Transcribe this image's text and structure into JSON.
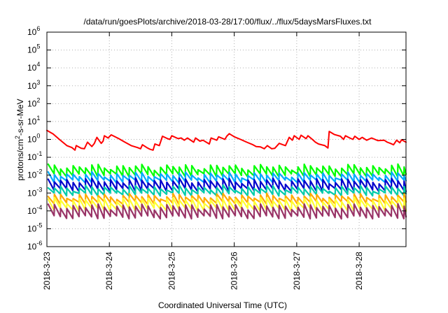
{
  "chart_data": {
    "type": "line",
    "title": "/data/run/goesPlots/archive/2018-03-28/17:00/flux/../flux/5daysMarsFluxes.txt",
    "xlabel": "Coordinated Universal Time (UTC)",
    "ylabel_parts": [
      "protons/cm",
      "2",
      "-s-sr-MeV"
    ],
    "y_scale": "log",
    "ylim": [
      1e-06,
      1000000.0
    ],
    "y_ticks": [
      {
        "mantissa": "10",
        "exp": "-6"
      },
      {
        "mantissa": "10",
        "exp": "-5"
      },
      {
        "mantissa": "10",
        "exp": "-4"
      },
      {
        "mantissa": "10",
        "exp": "-3"
      },
      {
        "mantissa": "10",
        "exp": "-2"
      },
      {
        "mantissa": "10",
        "exp": "-1"
      },
      {
        "mantissa": "10",
        "exp": "0"
      },
      {
        "mantissa": "10",
        "exp": "1"
      },
      {
        "mantissa": "10",
        "exp": "2"
      },
      {
        "mantissa": "10",
        "exp": "3"
      },
      {
        "mantissa": "10",
        "exp": "4"
      },
      {
        "mantissa": "10",
        "exp": "5"
      },
      {
        "mantissa": "10",
        "exp": "6"
      }
    ],
    "x_unit": "days",
    "xlim": [
      0,
      5.75
    ],
    "x_ticks": [
      {
        "label": "2018-3-23",
        "value": 0
      },
      {
        "label": "2018-3-24",
        "value": 1
      },
      {
        "label": "2018-3-25",
        "value": 2
      },
      {
        "label": "2018-3-26",
        "value": 3
      },
      {
        "label": "2018-3-27",
        "value": 4
      },
      {
        "label": "2018-3-28",
        "value": 5
      }
    ],
    "grid": true,
    "legend": "none",
    "series": [
      {
        "color": "#ff0000",
        "points": [
          [
            0.0,
            3.2
          ],
          [
            0.1,
            2.0
          ],
          [
            0.2,
            1.0
          ],
          [
            0.32,
            0.45
          ],
          [
            0.4,
            0.35
          ],
          [
            0.45,
            0.25
          ],
          [
            0.47,
            0.45
          ],
          [
            0.55,
            0.32
          ],
          [
            0.6,
            0.3
          ],
          [
            0.65,
            0.7
          ],
          [
            0.72,
            0.4
          ],
          [
            0.76,
            0.6
          ],
          [
            0.8,
            1.3
          ],
          [
            0.87,
            0.6
          ],
          [
            0.9,
            0.8
          ],
          [
            0.92,
            1.6
          ],
          [
            0.98,
            1.2
          ],
          [
            1.03,
            1.8
          ],
          [
            1.15,
            1.1
          ],
          [
            1.25,
            0.7
          ],
          [
            1.35,
            0.45
          ],
          [
            1.45,
            0.35
          ],
          [
            1.5,
            0.3
          ],
          [
            1.53,
            0.5
          ],
          [
            1.6,
            0.35
          ],
          [
            1.65,
            0.28
          ],
          [
            1.7,
            0.25
          ],
          [
            1.73,
            0.55
          ],
          [
            1.8,
            0.45
          ],
          [
            1.85,
            1.5
          ],
          [
            1.93,
            1.1
          ],
          [
            1.97,
            1.0
          ],
          [
            2.0,
            1.6
          ],
          [
            2.1,
            1.1
          ],
          [
            2.15,
            1.2
          ],
          [
            2.2,
            0.9
          ],
          [
            2.25,
            1.2
          ],
          [
            2.35,
            0.7
          ],
          [
            2.38,
            1.2
          ],
          [
            2.45,
            0.8
          ],
          [
            2.5,
            0.9
          ],
          [
            2.6,
            0.55
          ],
          [
            2.63,
            1.2
          ],
          [
            2.72,
            0.9
          ],
          [
            2.75,
            1.4
          ],
          [
            2.85,
            1.0
          ],
          [
            2.88,
            1.5
          ],
          [
            2.92,
            2.1
          ],
          [
            3.0,
            1.4
          ],
          [
            3.1,
            1.0
          ],
          [
            3.2,
            0.7
          ],
          [
            3.3,
            0.5
          ],
          [
            3.35,
            0.4
          ],
          [
            3.42,
            0.38
          ],
          [
            3.48,
            0.3
          ],
          [
            3.53,
            0.45
          ],
          [
            3.6,
            0.3
          ],
          [
            3.65,
            0.32
          ],
          [
            3.72,
            0.6
          ],
          [
            3.78,
            0.5
          ],
          [
            3.82,
            0.45
          ],
          [
            3.88,
            1.3
          ],
          [
            3.93,
            0.9
          ],
          [
            3.96,
            1.6
          ],
          [
            4.04,
            1.0
          ],
          [
            4.07,
            1.7
          ],
          [
            4.15,
            1.1
          ],
          [
            4.18,
            1.6
          ],
          [
            4.25,
            1.0
          ],
          [
            4.3,
            0.7
          ],
          [
            4.35,
            0.55
          ],
          [
            4.45,
            0.45
          ],
          [
            4.5,
            0.33
          ],
          [
            4.52,
            2.8
          ],
          [
            4.6,
            1.9
          ],
          [
            4.7,
            1.5
          ],
          [
            4.75,
            1.0
          ],
          [
            4.78,
            1.6
          ],
          [
            4.85,
            1.2
          ],
          [
            4.9,
            1.0
          ],
          [
            4.93,
            1.5
          ],
          [
            5.0,
            1.0
          ],
          [
            5.05,
            1.3
          ],
          [
            5.12,
            0.9
          ],
          [
            5.2,
            1.2
          ],
          [
            5.3,
            0.85
          ],
          [
            5.4,
            0.9
          ],
          [
            5.45,
            0.7
          ],
          [
            5.5,
            0.6
          ],
          [
            5.55,
            0.5
          ],
          [
            5.6,
            0.9
          ],
          [
            5.65,
            0.65
          ],
          [
            5.68,
            0.95
          ],
          [
            5.75,
            0.7
          ]
        ]
      },
      {
        "color": "#00ff00",
        "baseline": 0.012,
        "peak": 0.03,
        "trough": 0.01
      },
      {
        "color": "#00aaff",
        "baseline": 0.0055,
        "peak": 0.011,
        "trough": 0.0045
      },
      {
        "color": "#0000cc",
        "baseline": 0.0025,
        "peak": 0.005,
        "trough": 0.0015
      },
      {
        "color": "#00ccaa",
        "baseline": 0.0012,
        "peak": 0.002,
        "trough": 0.00085
      },
      {
        "color": "#ffaa00",
        "baseline": 0.00045,
        "peak": 0.0007,
        "trough": 0.00028
      },
      {
        "color": "#ffff33",
        "baseline": 0.0002,
        "peak": 0.00042,
        "trough": 0.00012
      },
      {
        "color": "#993366",
        "baseline": 6e-05,
        "peak": 0.00018,
        "trough": 4.5e-05
      }
    ],
    "sawtooth_period_days": 0.1,
    "sawtooth_start_days": 0.02
  }
}
